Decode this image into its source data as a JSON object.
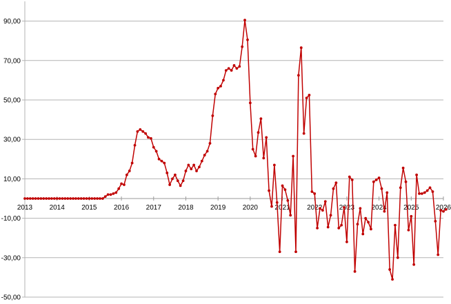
{
  "chart_data": {
    "type": "line",
    "title": "",
    "xlabel": "",
    "ylabel": "",
    "xlim": [
      2013,
      2026
    ],
    "ylim": [
      -50,
      100
    ],
    "y_ticks": [
      90,
      70,
      50,
      30,
      10,
      -10,
      -30,
      -50
    ],
    "y_tick_labels": [
      "90,00",
      "70,00",
      "50,00",
      "30,00",
      "10,00",
      "-10,00",
      "-30,00",
      "-50,00"
    ],
    "x_ticks": [
      2013,
      2014,
      2015,
      2016,
      2017,
      2018,
      2019,
      2020,
      2021,
      2022,
      2023,
      2024,
      2025,
      2026
    ],
    "x_tick_labels": [
      "2013",
      "2014",
      "2015",
      "2016",
      "2017",
      "2018",
      "2019",
      "2020",
      "2021",
      "2022",
      "2023",
      "2024",
      "2025",
      "2026"
    ],
    "grid": true,
    "legend": "none",
    "colors": {
      "line": "#c00000",
      "grid": "#b3b3b3",
      "zero_line": "#9a9a9a",
      "axis": "#b3b3b3"
    },
    "series": [
      {
        "x": [
          2013.0,
          2013.083,
          2013.167,
          2013.25,
          2013.333,
          2013.417,
          2013.5,
          2013.583,
          2013.667,
          2013.75,
          2013.833,
          2013.917,
          2014.0,
          2014.083,
          2014.167,
          2014.25,
          2014.333,
          2014.417,
          2014.5,
          2014.583,
          2014.667,
          2014.75,
          2014.833,
          2014.917,
          2015.0,
          2015.083,
          2015.167,
          2015.25,
          2015.333,
          2015.417,
          2015.5,
          2015.583,
          2015.667,
          2015.75,
          2015.833,
          2015.917,
          2016.0,
          2016.083,
          2016.167,
          2016.25,
          2016.333,
          2016.417,
          2016.5,
          2016.583,
          2016.667,
          2016.75,
          2016.833,
          2016.917,
          2017.0,
          2017.083,
          2017.167,
          2017.25,
          2017.333,
          2017.417,
          2017.5,
          2017.583,
          2017.667,
          2017.75,
          2017.833,
          2017.917,
          2018.0,
          2018.083,
          2018.167,
          2018.25,
          2018.333,
          2018.417,
          2018.5,
          2018.583,
          2018.667,
          2018.75,
          2018.833,
          2018.917,
          2019.0,
          2019.083,
          2019.167,
          2019.25,
          2019.333,
          2019.417,
          2019.5,
          2019.583,
          2019.667,
          2019.75,
          2019.833,
          2019.917,
          2020.0,
          2020.083,
          2020.167,
          2020.25,
          2020.333,
          2020.417,
          2020.5,
          2020.583,
          2020.667,
          2020.75,
          2020.833,
          2020.917,
          2021.0,
          2021.083,
          2021.167,
          2021.25,
          2021.333,
          2021.417,
          2021.5,
          2021.583,
          2021.667,
          2021.75,
          2021.833,
          2021.917,
          2022.0,
          2022.083,
          2022.167,
          2022.25,
          2022.333,
          2022.417,
          2022.5,
          2022.583,
          2022.667,
          2022.75,
          2022.833,
          2022.917,
          2023.0,
          2023.083,
          2023.167,
          2023.25,
          2023.333,
          2023.417,
          2023.5,
          2023.583,
          2023.667,
          2023.75,
          2023.833,
          2023.917,
          2024.0,
          2024.083,
          2024.167,
          2024.25,
          2024.333,
          2024.417,
          2024.5,
          2024.583,
          2024.667,
          2024.75,
          2024.833,
          2024.917,
          2025.0,
          2025.083,
          2025.167,
          2025.25,
          2025.333,
          2025.417,
          2025.5,
          2025.583,
          2025.667,
          2025.75,
          2025.833,
          2025.917,
          2026.0,
          2026.083
        ],
        "y": [
          0,
          0,
          0,
          0,
          0,
          0,
          0,
          0,
          0,
          0,
          0,
          0,
          0,
          0,
          0,
          0,
          0,
          0,
          0,
          0,
          0,
          0,
          0,
          0,
          0,
          0,
          0,
          0,
          0,
          0,
          1,
          2,
          2,
          2.5,
          3,
          5,
          7.5,
          7,
          12,
          14,
          18,
          27,
          34,
          35,
          34,
          33,
          31,
          30.5,
          26,
          24,
          20,
          19,
          18,
          13,
          7,
          10,
          12,
          9,
          6.5,
          9,
          14,
          17,
          15,
          17,
          14,
          16,
          19,
          22,
          24,
          28,
          42,
          53,
          56,
          57,
          60,
          65,
          66,
          65,
          67.5,
          66,
          67,
          77,
          90.5,
          80.5,
          48.5,
          25,
          21.5,
          33.5,
          40.5,
          20.5,
          31,
          4,
          -4,
          17,
          -2,
          -27,
          6.5,
          4.5,
          -1,
          -8.5,
          21.5,
          -27,
          62.5,
          76.5,
          33,
          51,
          52.5,
          3.5,
          2.5,
          -15,
          -5,
          -6,
          -1.5,
          -14.5,
          -8.5,
          5,
          8,
          -15,
          -13.5,
          -4.5,
          -22,
          11,
          9.5,
          -37,
          -13,
          -5,
          -18,
          -10,
          -12,
          -15.5,
          8.5,
          9.5,
          10.5,
          5,
          -6.5,
          3,
          -36,
          -41,
          -13.5,
          -30,
          5.5,
          15.5,
          8.5,
          -16,
          -9,
          -33.5,
          12,
          2.5,
          2.5,
          3,
          4,
          5.5,
          3.5,
          -11.5,
          -28.5,
          -6,
          -6.5,
          -5.5
        ]
      }
    ]
  }
}
